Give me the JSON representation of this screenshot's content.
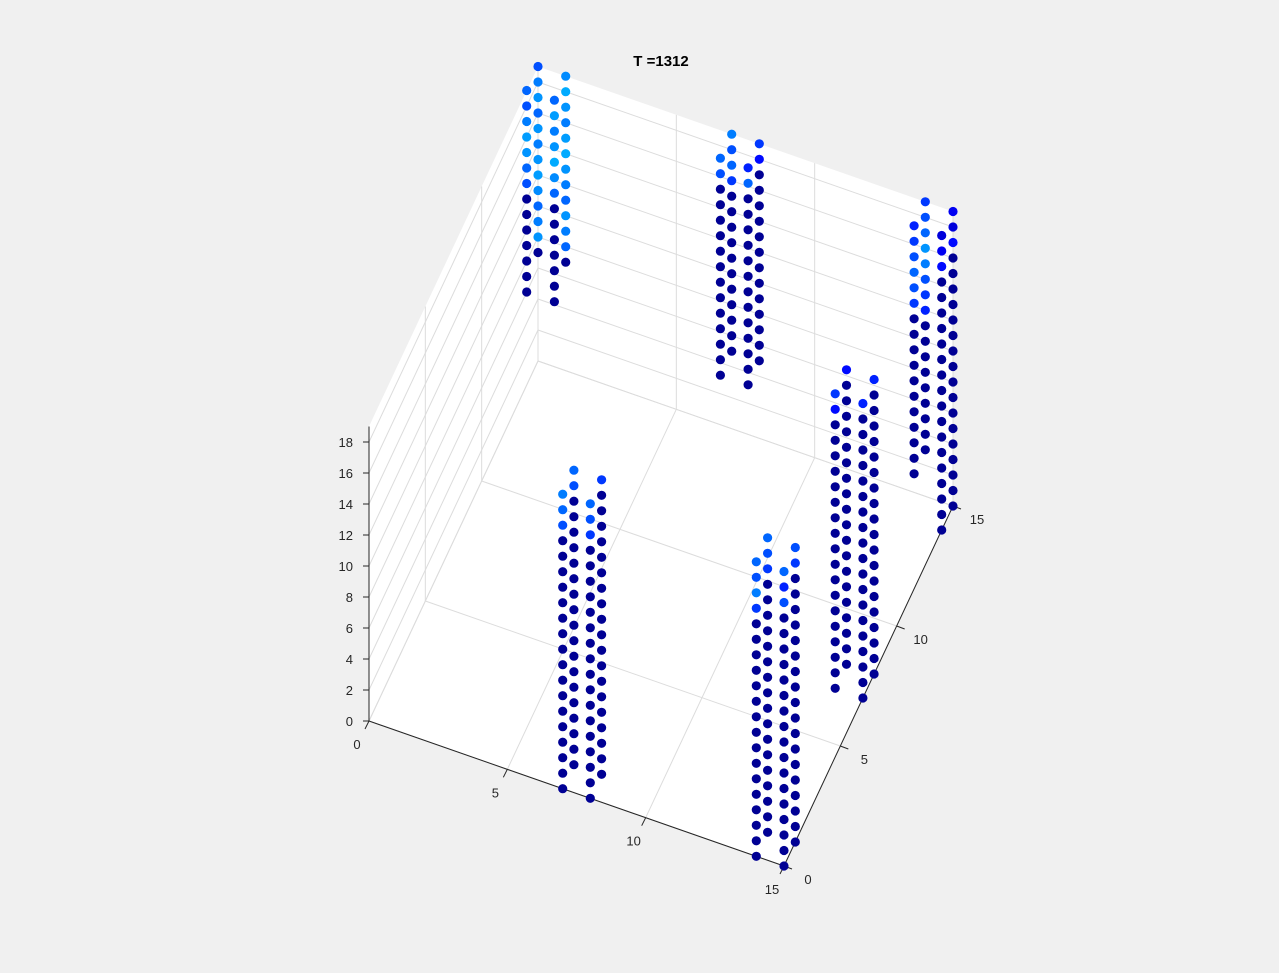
{
  "figure": {
    "background": "#f0f0f0",
    "axes_background": "#ffffff"
  },
  "chart_data": {
    "type": "scatter3d",
    "title": "T =1312",
    "xlabel": "",
    "ylabel": "",
    "zlabel": "",
    "xlim": [
      0,
      15
    ],
    "ylim": [
      0,
      15
    ],
    "zlim": [
      0,
      19
    ],
    "x_ticks": [
      "0",
      "5",
      "10",
      "15"
    ],
    "y_ticks": [
      "0",
      "5",
      "10",
      "15"
    ],
    "z_ticks": [
      "0",
      "2",
      "4",
      "6",
      "8",
      "10",
      "12",
      "14",
      "16",
      "18"
    ],
    "grid": true,
    "marker": "filled circle",
    "colormap": "jet (low values dark navy, high values cyan)",
    "color_range": [
      0,
      1
    ],
    "pillars": [
      {
        "x": 0,
        "y": 15,
        "z_bottom": 7,
        "z_top": 19,
        "top_values": [
          0.45,
          0.55,
          0.6,
          0.5,
          0.6,
          0.55,
          0.6,
          0.62,
          0.58,
          0.5,
          0.55,
          0.6
        ]
      },
      {
        "x": 1,
        "y": 15,
        "z_bottom": 7,
        "z_top": 19,
        "top_values": [
          0.58,
          0.65,
          0.6,
          0.55,
          0.62,
          0.65,
          0.6,
          0.55,
          0.5,
          0.6,
          0.55,
          0.5
        ]
      },
      {
        "x": 1,
        "y": 14,
        "z_bottom": 6,
        "z_top": 19,
        "top_values": [
          0.5,
          0.62,
          0.55,
          0.6,
          0.65,
          0.58,
          0.5
        ]
      },
      {
        "x": 0,
        "y": 14,
        "z_bottom": 6,
        "z_top": 19,
        "top_values": [
          0.5,
          0.45,
          0.55,
          0.62,
          0.6,
          0.5,
          0.45
        ]
      },
      {
        "x": 14,
        "y": 15,
        "z_bottom": 3,
        "z_top": 19,
        "top_values": [
          0.4,
          0.45,
          0.5,
          0.6,
          0.55,
          0.45,
          0.4,
          0.35
        ]
      },
      {
        "x": 14,
        "y": 14,
        "z_bottom": 3,
        "z_top": 19,
        "top_values": [
          0.35,
          0.4,
          0.45,
          0.5,
          0.45,
          0.4
        ]
      },
      {
        "x": 15,
        "y": 14,
        "z_bottom": 0,
        "z_top": 19,
        "top_values": [
          0.2,
          0.25,
          0.3
        ]
      },
      {
        "x": 15,
        "y": 15,
        "z_bottom": 0,
        "z_top": 19,
        "top_values": [
          0.25,
          0.2,
          0.3
        ]
      },
      {
        "x": 7,
        "y": 15,
        "z_bottom": 5,
        "z_top": 19,
        "top_values": [
          0.55,
          0.45,
          0.5,
          0.4
        ]
      },
      {
        "x": 7,
        "y": 14,
        "z_bottom": 5,
        "z_top": 19,
        "top_values": [
          0.5,
          0.45
        ]
      },
      {
        "x": 8,
        "y": 14,
        "z_bottom": 5,
        "z_top": 19,
        "top_values": [
          0.35,
          0.5
        ]
      },
      {
        "x": 8,
        "y": 15,
        "z_bottom": 5,
        "z_top": 19,
        "top_values": [
          0.4,
          0.3
        ]
      },
      {
        "x": 7,
        "y": 0,
        "z_bottom": 0,
        "z_top": 19,
        "top_values": [
          0.55,
          0.5,
          0.45
        ]
      },
      {
        "x": 8,
        "y": 0,
        "z_bottom": 0,
        "z_top": 19,
        "top_values": [
          0.5,
          0.45,
          0.4
        ]
      },
      {
        "x": 7,
        "y": 1,
        "z_bottom": 0,
        "z_top": 19,
        "top_values": [
          0.5,
          0.45
        ]
      },
      {
        "x": 8,
        "y": 1,
        "z_bottom": 0,
        "z_top": 19,
        "top_values": [
          0.4
        ]
      },
      {
        "x": 14,
        "y": 0,
        "z_bottom": 0,
        "z_top": 19,
        "top_values": [
          0.5,
          0.45,
          0.55,
          0.4
        ]
      },
      {
        "x": 15,
        "y": 0,
        "z_bottom": 0,
        "z_top": 19,
        "top_values": [
          0.5,
          0.35,
          0.45
        ]
      },
      {
        "x": 14,
        "y": 1,
        "z_bottom": 0,
        "z_top": 19,
        "top_values": [
          0.5,
          0.45,
          0.4
        ]
      },
      {
        "x": 15,
        "y": 1,
        "z_bottom": 0,
        "z_top": 19,
        "top_values": [
          0.45,
          0.4
        ]
      },
      {
        "x": 14,
        "y": 7,
        "z_bottom": 0,
        "z_top": 19,
        "top_values": [
          0.4,
          0.3
        ]
      },
      {
        "x": 15,
        "y": 7,
        "z_bottom": 0,
        "z_top": 19,
        "top_values": [
          0.35
        ]
      },
      {
        "x": 14,
        "y": 8,
        "z_bottom": 0,
        "z_top": 19,
        "top_values": [
          0.3
        ]
      },
      {
        "x": 15,
        "y": 8,
        "z_bottom": 0,
        "z_top": 19,
        "top_values": [
          0.35
        ]
      }
    ]
  }
}
